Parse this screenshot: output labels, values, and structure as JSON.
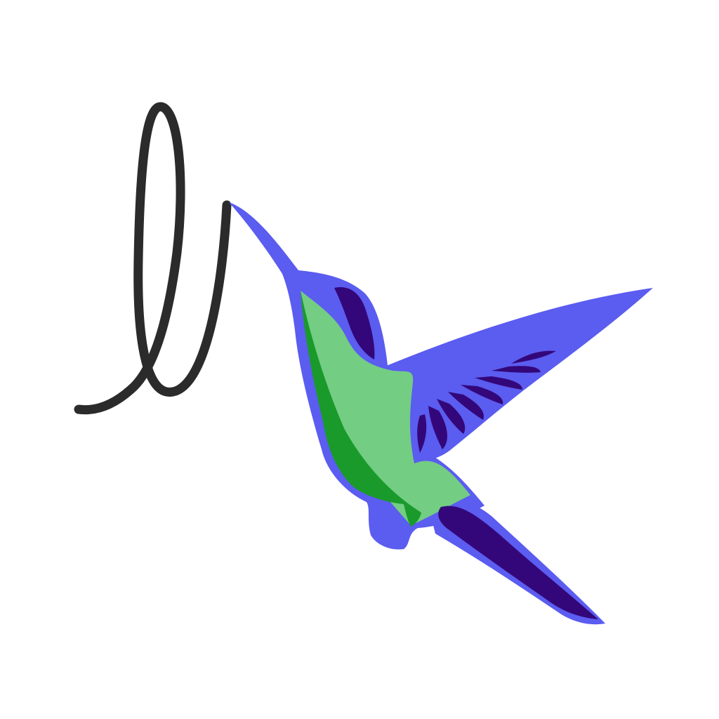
{
  "illustration": {
    "subject": "hummingbird-logo",
    "colors": {
      "background": "#ffffff",
      "nectar_trail": "#2b2b2b",
      "outline": "#5b5cf0",
      "body_light": "#73cd83",
      "body_dark": "#1a9a2b",
      "feather_dark": "#33077a"
    }
  }
}
